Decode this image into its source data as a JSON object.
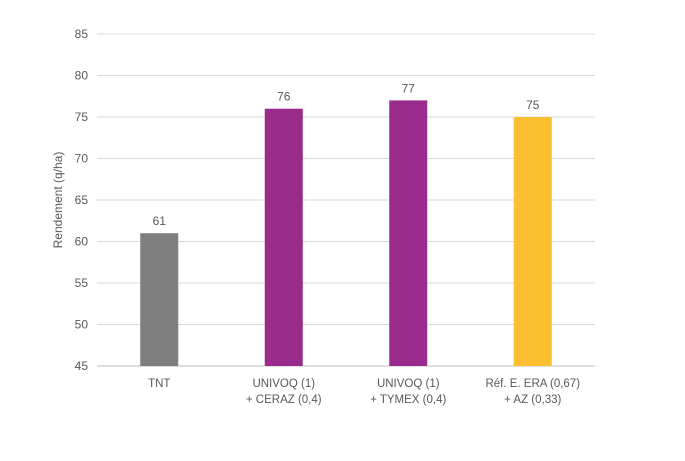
{
  "chart_data": {
    "type": "bar",
    "title": "",
    "xlabel": "",
    "ylabel": "Rendement (q/ha)",
    "ylim": [
      45,
      85
    ],
    "yticks": [
      45,
      50,
      55,
      60,
      65,
      70,
      75,
      80,
      85
    ],
    "grid": true,
    "categories": [
      [
        "TNT"
      ],
      [
        "UNIVOQ (1)",
        "+ CERAZ (0,4)"
      ],
      [
        "UNIVOQ (1)",
        "+ TYMEX (0,4)"
      ],
      [
        "Réf. E. ERA (0,67)",
        "+ AZ (0,33)"
      ]
    ],
    "values": [
      61,
      76,
      77,
      75
    ],
    "colors": [
      "#7f7f7f",
      "#982b8c",
      "#982b8c",
      "#fbbf2f"
    ]
  }
}
